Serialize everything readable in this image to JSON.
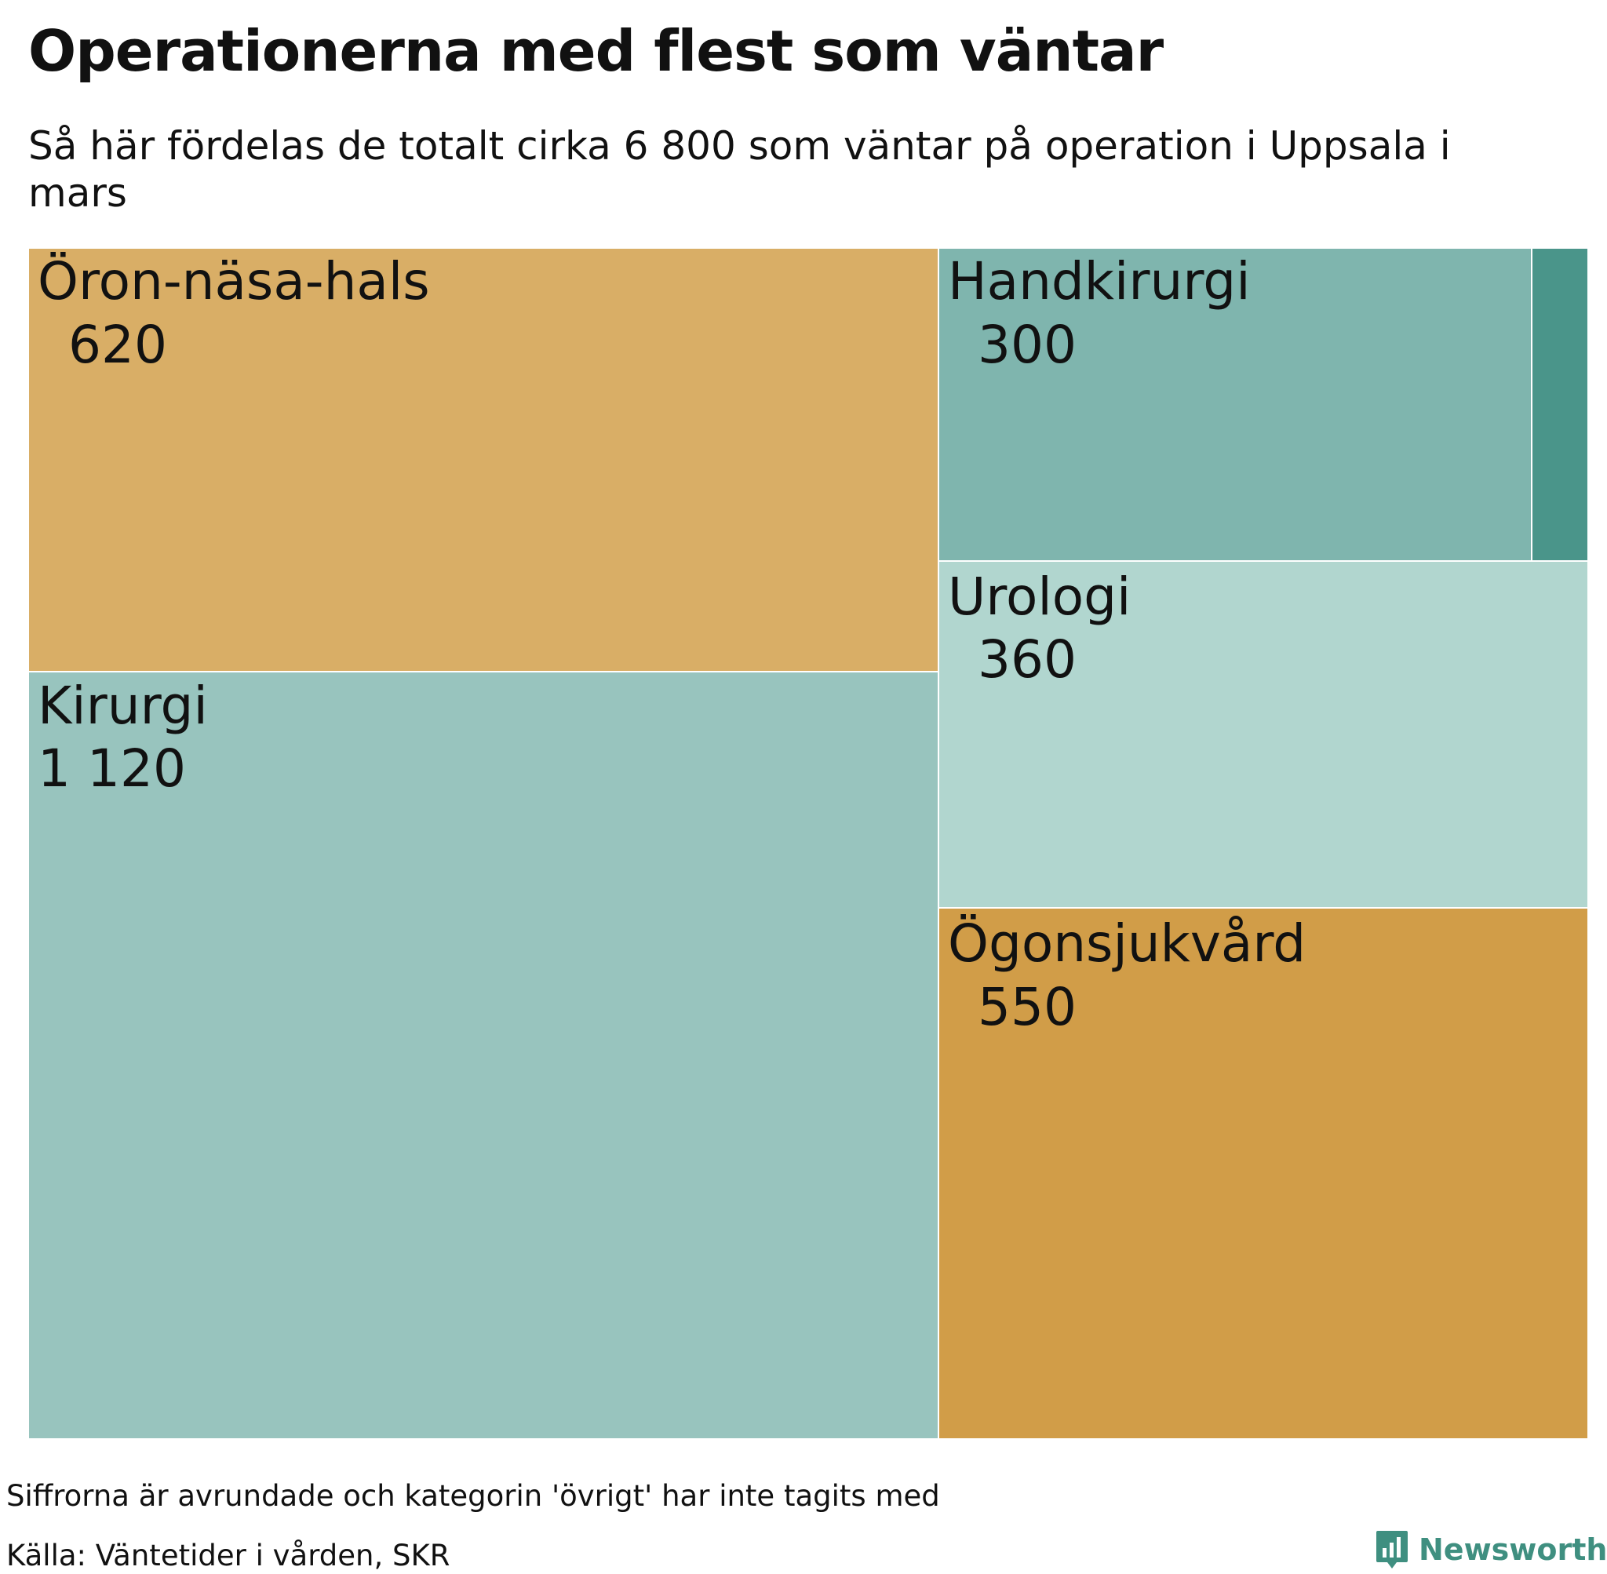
{
  "title": "Operationerna med flest som väntar",
  "subtitle": "Så här fördelas de totalt cirka 6 800 som väntar på operation i Uppsala i mars",
  "note": "Siffrorna är avrundade och kategorin 'övrigt' har inte tagits med",
  "source": "Källa: Väntetider i vården, SKR",
  "brand": {
    "name": "Newsworthy",
    "icon": "bar-chart-logo-icon",
    "color": "#3f8f80"
  },
  "chart_data": {
    "type": "treemap",
    "title": "Operationerna med flest som väntar",
    "subtitle": "Så här fördelas de totalt cirka 6 800 som väntar på operation i Uppsala i mars",
    "series": [
      {
        "name": "Öron-näsa-hals",
        "value": 620,
        "label": "620",
        "color": "#d9ae66"
      },
      {
        "name": "Kirurgi",
        "value": 1120,
        "label": "1 120",
        "color": "#98c4be"
      },
      {
        "name": "Handkirurgi",
        "value": 300,
        "label": "300",
        "color": "#7fb5ae"
      },
      {
        "name": "Urologi",
        "value": 360,
        "label": "360",
        "color": "#b1d6cf"
      },
      {
        "name": "Ögonsjukvård",
        "value": 550,
        "label": "550",
        "color": "#d19d48"
      },
      {
        "name": "",
        "value": 60,
        "label": "",
        "color": "#4a958a"
      }
    ]
  }
}
